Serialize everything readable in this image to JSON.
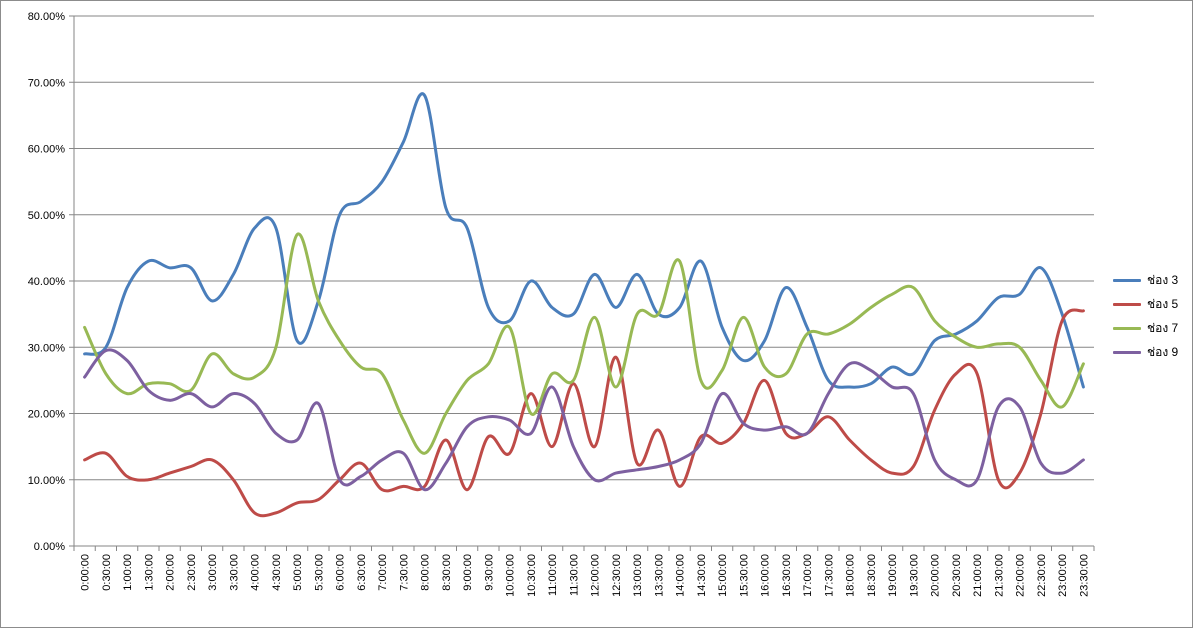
{
  "chart_data": {
    "type": "line",
    "title": "",
    "xlabel": "",
    "ylabel": "",
    "ylim": [
      0,
      0.8
    ],
    "y_ticks": [
      "0.00%",
      "10.00%",
      "20.00%",
      "30.00%",
      "40.00%",
      "50.00%",
      "60.00%",
      "70.00%",
      "80.00%"
    ],
    "grid": "horizontal",
    "legend_position": "right",
    "categories": [
      "0:00:00",
      "0:30:00",
      "1:00:00",
      "1:30:00",
      "2:00:00",
      "2:30:00",
      "3:00:00",
      "3:30:00",
      "4:00:00",
      "4:30:00",
      "5:00:00",
      "5:30:00",
      "6:00:00",
      "6:30:00",
      "7:00:00",
      "7:30:00",
      "8:00:00",
      "8:30:00",
      "9:00:00",
      "9:30:00",
      "10:00:00",
      "10:30:00",
      "11:00:00",
      "11:30:00",
      "12:00:00",
      "12:30:00",
      "13:00:00",
      "13:30:00",
      "14:00:00",
      "14:30:00",
      "15:00:00",
      "15:30:00",
      "16:00:00",
      "16:30:00",
      "17:00:00",
      "17:30:00",
      "18:00:00",
      "18:30:00",
      "19:00:00",
      "19:30:00",
      "20:00:00",
      "20:30:00",
      "21:00:00",
      "21:30:00",
      "22:00:00",
      "22:30:00",
      "23:00:00",
      "23:30:00"
    ],
    "series": [
      {
        "name": "ช่อง 3",
        "color": "#4a7ebb",
        "values": [
          0.29,
          0.3,
          0.39,
          0.43,
          0.42,
          0.42,
          0.37,
          0.41,
          0.48,
          0.48,
          0.31,
          0.37,
          0.5,
          0.52,
          0.55,
          0.61,
          0.68,
          0.51,
          0.48,
          0.36,
          0.34,
          0.4,
          0.36,
          0.35,
          0.41,
          0.36,
          0.41,
          0.35,
          0.36,
          0.43,
          0.33,
          0.28,
          0.31,
          0.39,
          0.33,
          0.25,
          0.24,
          0.245,
          0.27,
          0.26,
          0.31,
          0.32,
          0.34,
          0.375,
          0.38,
          0.42,
          0.35,
          0.24
        ]
      },
      {
        "name": "ช่อง 5",
        "color": "#be4b48",
        "values": [
          0.13,
          0.14,
          0.105,
          0.1,
          0.11,
          0.12,
          0.13,
          0.1,
          0.05,
          0.05,
          0.065,
          0.07,
          0.1,
          0.125,
          0.085,
          0.09,
          0.09,
          0.16,
          0.085,
          0.165,
          0.14,
          0.23,
          0.15,
          0.245,
          0.15,
          0.285,
          0.125,
          0.175,
          0.09,
          0.165,
          0.155,
          0.185,
          0.25,
          0.17,
          0.17,
          0.195,
          0.16,
          0.13,
          0.11,
          0.12,
          0.205,
          0.26,
          0.26,
          0.1,
          0.11,
          0.2,
          0.34,
          0.355
        ]
      },
      {
        "name": "ช่อง 7",
        "color": "#98b954",
        "values": [
          0.33,
          0.26,
          0.23,
          0.245,
          0.245,
          0.235,
          0.29,
          0.26,
          0.255,
          0.3,
          0.47,
          0.37,
          0.31,
          0.27,
          0.26,
          0.19,
          0.14,
          0.2,
          0.25,
          0.275,
          0.33,
          0.2,
          0.26,
          0.25,
          0.345,
          0.24,
          0.35,
          0.35,
          0.43,
          0.25,
          0.265,
          0.345,
          0.27,
          0.26,
          0.32,
          0.32,
          0.335,
          0.36,
          0.38,
          0.39,
          0.34,
          0.315,
          0.3,
          0.305,
          0.3,
          0.25,
          0.21,
          0.275
        ]
      },
      {
        "name": "ช่อง 9",
        "color": "#7d60a0",
        "values": [
          0.255,
          0.295,
          0.28,
          0.235,
          0.22,
          0.23,
          0.21,
          0.23,
          0.215,
          0.17,
          0.16,
          0.215,
          0.1,
          0.105,
          0.13,
          0.14,
          0.085,
          0.125,
          0.18,
          0.195,
          0.19,
          0.17,
          0.24,
          0.15,
          0.1,
          0.11,
          0.115,
          0.12,
          0.13,
          0.155,
          0.23,
          0.185,
          0.175,
          0.18,
          0.17,
          0.23,
          0.275,
          0.265,
          0.24,
          0.23,
          0.13,
          0.1,
          0.1,
          0.21,
          0.21,
          0.125,
          0.11,
          0.13
        ]
      }
    ]
  }
}
